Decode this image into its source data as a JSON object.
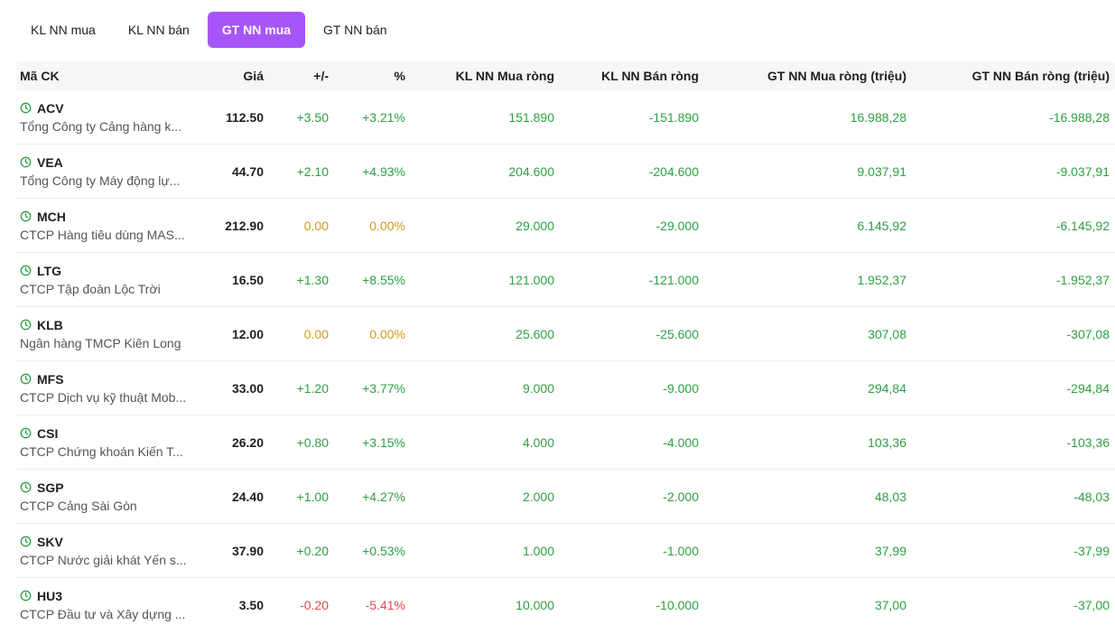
{
  "tabs": [
    {
      "label": "KL NN mua",
      "active": false
    },
    {
      "label": "KL NN bán",
      "active": false
    },
    {
      "label": "GT NN mua",
      "active": true
    },
    {
      "label": "GT NN bán",
      "active": false
    }
  ],
  "columns": {
    "symbol": "Mã CK",
    "price": "Giá",
    "change": "+/-",
    "percent": "%",
    "kl_buy": "KL NN Mua ròng",
    "kl_sell": "KL NN Bán ròng",
    "gt_buy": "GT NN Mua ròng (triệu)",
    "gt_sell": "GT NN Bán ròng (triệu)"
  },
  "colors": {
    "up": "#2ea043",
    "ref": "#d19a1c",
    "down": "#e5484d",
    "accent": "#a855f7"
  },
  "rows": [
    {
      "symbol": "ACV",
      "company": "Tổng Công ty Cảng hàng k...",
      "price": "112.50",
      "change": "+3.50",
      "percent": "+3.21%",
      "kl_buy": "151.890",
      "kl_sell": "-151.890",
      "gt_buy": "16.988,28",
      "gt_sell": "-16.988,28",
      "trend": "up"
    },
    {
      "symbol": "VEA",
      "company": "Tổng Công ty Máy động lự...",
      "price": "44.70",
      "change": "+2.10",
      "percent": "+4.93%",
      "kl_buy": "204.600",
      "kl_sell": "-204.600",
      "gt_buy": "9.037,91",
      "gt_sell": "-9.037,91",
      "trend": "up"
    },
    {
      "symbol": "MCH",
      "company": "CTCP Hàng tiêu dùng MAS...",
      "price": "212.90",
      "change": "0.00",
      "percent": "0.00%",
      "kl_buy": "29.000",
      "kl_sell": "-29.000",
      "gt_buy": "6.145,92",
      "gt_sell": "-6.145,92",
      "trend": "ref"
    },
    {
      "symbol": "LTG",
      "company": "CTCP Tập đoàn Lộc Trời",
      "price": "16.50",
      "change": "+1.30",
      "percent": "+8.55%",
      "kl_buy": "121.000",
      "kl_sell": "-121.000",
      "gt_buy": "1.952,37",
      "gt_sell": "-1.952,37",
      "trend": "up"
    },
    {
      "symbol": "KLB",
      "company": "Ngân hàng TMCP Kiên Long",
      "price": "12.00",
      "change": "0.00",
      "percent": "0.00%",
      "kl_buy": "25.600",
      "kl_sell": "-25.600",
      "gt_buy": "307,08",
      "gt_sell": "-307,08",
      "trend": "ref"
    },
    {
      "symbol": "MFS",
      "company": "CTCP Dịch vụ kỹ thuật Mob...",
      "price": "33.00",
      "change": "+1.20",
      "percent": "+3.77%",
      "kl_buy": "9.000",
      "kl_sell": "-9.000",
      "gt_buy": "294,84",
      "gt_sell": "-294,84",
      "trend": "up"
    },
    {
      "symbol": "CSI",
      "company": "CTCP Chứng khoán Kiến T...",
      "price": "26.20",
      "change": "+0.80",
      "percent": "+3.15%",
      "kl_buy": "4.000",
      "kl_sell": "-4.000",
      "gt_buy": "103,36",
      "gt_sell": "-103,36",
      "trend": "up"
    },
    {
      "symbol": "SGP",
      "company": "CTCP Cảng Sài Gòn",
      "price": "24.40",
      "change": "+1.00",
      "percent": "+4.27%",
      "kl_buy": "2.000",
      "kl_sell": "-2.000",
      "gt_buy": "48,03",
      "gt_sell": "-48,03",
      "trend": "up"
    },
    {
      "symbol": "SKV",
      "company": "CTCP Nước giải khát Yến s...",
      "price": "37.90",
      "change": "+0.20",
      "percent": "+0.53%",
      "kl_buy": "1.000",
      "kl_sell": "-1.000",
      "gt_buy": "37,99",
      "gt_sell": "-37,99",
      "trend": "up"
    },
    {
      "symbol": "HU3",
      "company": "CTCP Đầu tư và Xây dựng ...",
      "price": "3.50",
      "change": "-0.20",
      "percent": "-5.41%",
      "kl_buy": "10.000",
      "kl_sell": "-10.000",
      "gt_buy": "37,00",
      "gt_sell": "-37,00",
      "trend": "down"
    }
  ]
}
